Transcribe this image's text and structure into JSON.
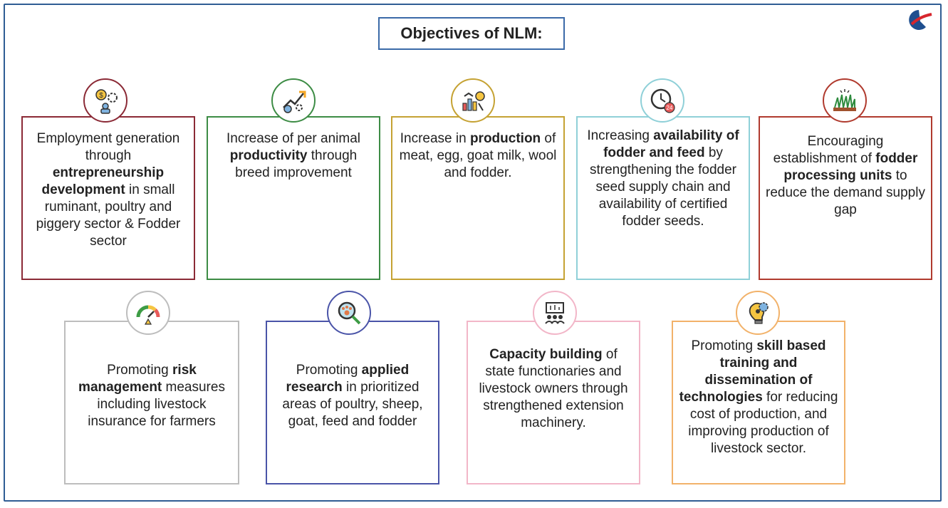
{
  "title": "Objectives of NLM:",
  "objectives": [
    {
      "pre": "Employment generation through ",
      "bold": "entrepreneurship development",
      "post": " in small ruminant, poultry and piggery sector & Fodder sector",
      "color": "#8b2a36",
      "icon": "money-gear-person-icon"
    },
    {
      "pre": "Increase of per animal ",
      "bold": "productivity",
      "post": " through breed improvement",
      "color": "#3d8c45",
      "icon": "growth-chart-icon"
    },
    {
      "pre": "Increase in ",
      "bold": "production",
      "post": " of meat, egg, goat milk, wool and fodder.",
      "color": "#c5a233",
      "icon": "production-chart-icon"
    },
    {
      "pre": "Increasing ",
      "bold": "availability of fodder and feed",
      "post": " by strengthening the fodder seed supply chain and availability of certified fodder seeds.",
      "color": "#8fd0d8",
      "icon": "clock-24-icon"
    },
    {
      "pre": "Encouraging establishment of ",
      "bold": "fodder processing units",
      "post": " to reduce the demand supply gap",
      "color": "#b03a2e",
      "icon": "grass-icon"
    },
    {
      "pre": "Promoting ",
      "bold": "risk management",
      "post": " measures including livestock insurance for farmers",
      "color": "#bdbdbd",
      "icon": "risk-gauge-icon"
    },
    {
      "pre": "Promoting ",
      "bold": "applied research",
      "post": " in prioritized areas of poultry, sheep, goat, feed and fodder",
      "color": "#4a54a8",
      "icon": "paw-magnifier-icon"
    },
    {
      "pre": "",
      "bold": "Capacity building",
      "post": " of state functionaries and livestock owners through strengthened extension machinery.",
      "color": "#f2b6c8",
      "icon": "training-people-icon"
    },
    {
      "pre": "Promoting ",
      "bold": "skill based training and dissemination of technologies",
      "post": " for reducing cost of production, and improving production of livestock sector.",
      "color": "#f2b26a",
      "icon": "bulb-gear-icon"
    }
  ]
}
